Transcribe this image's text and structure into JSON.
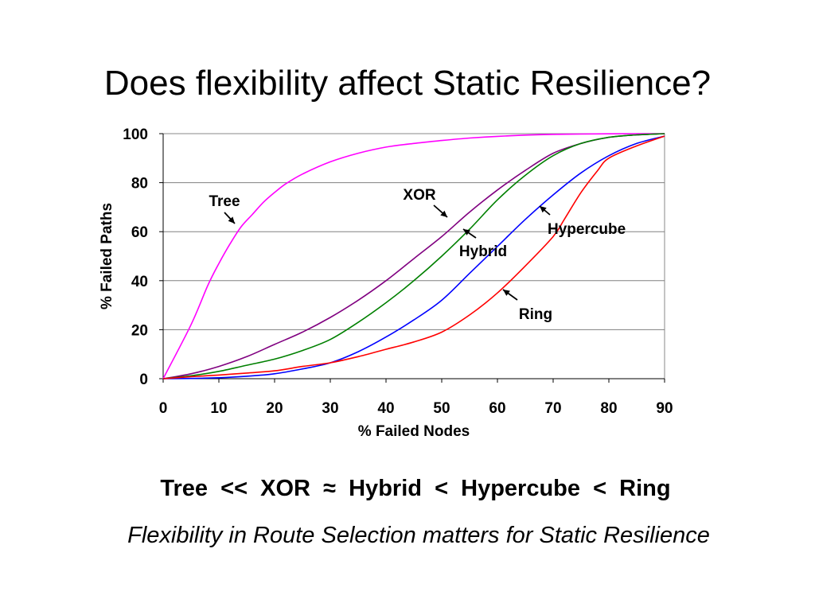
{
  "slide": {
    "title": "Does flexibility affect Static Resilience?",
    "summary": "Tree  <<  XOR  ≈  Hybrid  <  Hypercube  <  Ring",
    "tagline": "Flexibility in Route Selection matters for Static Resilience"
  },
  "chart_data": {
    "type": "line",
    "title": "",
    "xlabel": "% Failed Nodes",
    "ylabel": "% Failed Paths",
    "xlim": [
      0,
      90
    ],
    "ylim": [
      0,
      100
    ],
    "xticks": [
      0,
      10,
      20,
      30,
      40,
      50,
      60,
      70,
      80,
      90
    ],
    "yticks": [
      0,
      20,
      40,
      60,
      80,
      100
    ],
    "grid": "horizontal",
    "legend": "none",
    "series": [
      {
        "name": "Tree",
        "color": "#ff00ff",
        "x": [
          0,
          5,
          8,
          10,
          12,
          14,
          16,
          18,
          20,
          22,
          25,
          30,
          35,
          40,
          45,
          50,
          55,
          60,
          65,
          70,
          75,
          80,
          85,
          90
        ],
        "y": [
          0,
          22,
          38,
          47,
          55,
          62,
          67,
          72,
          76,
          79.5,
          83.5,
          88.5,
          92,
          94.5,
          96,
          97.2,
          98.2,
          98.9,
          99.4,
          99.7,
          99.85,
          99.95,
          100,
          100
        ]
      },
      {
        "name": "XOR",
        "color": "#800080",
        "x": [
          0,
          5,
          10,
          15,
          20,
          25,
          30,
          35,
          40,
          45,
          50,
          55,
          60,
          65,
          70,
          75,
          80,
          85,
          90
        ],
        "y": [
          0,
          2,
          5,
          9,
          14,
          19,
          25,
          32,
          40,
          49,
          58,
          68,
          77,
          85,
          92,
          96,
          98.5,
          99.5,
          100
        ]
      },
      {
        "name": "Hybrid",
        "color": "#008000",
        "x": [
          0,
          5,
          10,
          15,
          20,
          25,
          30,
          35,
          40,
          45,
          50,
          55,
          60,
          65,
          70,
          75,
          80,
          85,
          90
        ],
        "y": [
          0,
          1.2,
          3,
          5.5,
          8,
          11.5,
          16,
          23,
          31,
          40,
          50,
          61,
          73,
          83,
          91,
          96,
          98.5,
          99.5,
          100
        ]
      },
      {
        "name": "Hypercube",
        "color": "#0000ff",
        "x": [
          0,
          5,
          10,
          15,
          20,
          25,
          30,
          35,
          40,
          45,
          50,
          55,
          60,
          65,
          70,
          75,
          80,
          85,
          90
        ],
        "y": [
          0,
          0.1,
          0.4,
          1,
          2,
          4,
          6.5,
          11,
          17,
          24,
          32,
          43,
          54,
          65,
          75,
          84,
          91,
          96,
          99
        ]
      },
      {
        "name": "Ring",
        "color": "#ff0000",
        "x": [
          0,
          5,
          10,
          15,
          20,
          25,
          30,
          35,
          40,
          45,
          50,
          55,
          60,
          65,
          70,
          72,
          75,
          78,
          80,
          85,
          90
        ],
        "y": [
          0,
          0.8,
          1.5,
          2.3,
          3.2,
          5,
          6.5,
          9,
          12,
          15,
          19,
          26,
          35,
          46,
          58,
          65,
          76,
          85,
          90,
          95,
          99
        ]
      }
    ],
    "annotations": [
      {
        "text": "Tree",
        "series": "Tree"
      },
      {
        "text": "XOR",
        "series": "XOR"
      },
      {
        "text": "Hybrid",
        "series": "Hybrid"
      },
      {
        "text": "Hypercube",
        "series": "Hypercube"
      },
      {
        "text": "Ring",
        "series": "Ring"
      }
    ]
  }
}
